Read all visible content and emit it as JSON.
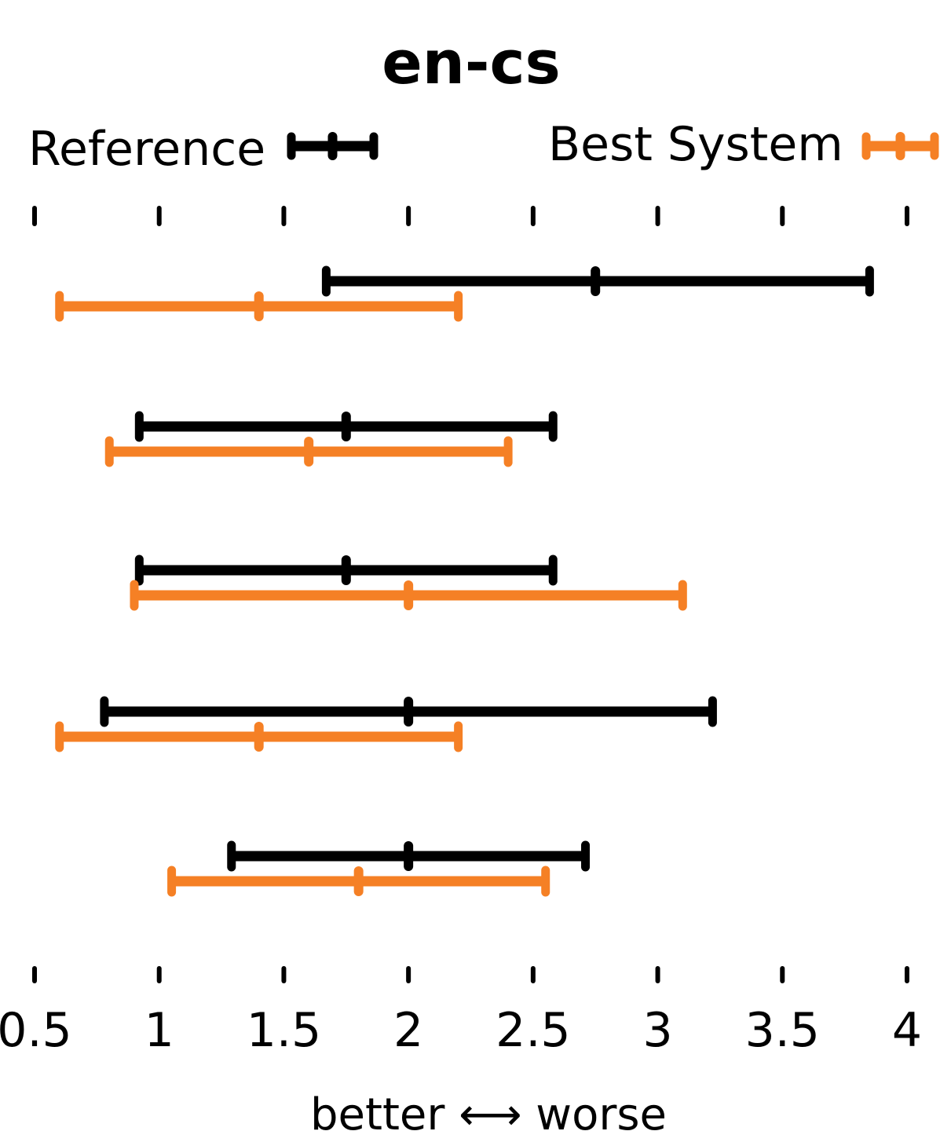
{
  "chart_data": {
    "type": "errorbar",
    "title": "en-cs",
    "xlabel": "better ⟷ worse",
    "ylabel": "",
    "xlim": [
      0.5,
      4
    ],
    "xticks": [
      0.5,
      1,
      1.5,
      2,
      2.5,
      3,
      3.5,
      4
    ],
    "xtick_labels": [
      "0.5",
      "1",
      "1.5",
      "2",
      "2.5",
      "3",
      "3.5",
      "4"
    ],
    "legend": {
      "placement": "top"
    },
    "series": [
      {
        "name": "Reference",
        "color": "#000000",
        "points": [
          {
            "low": 1.67,
            "mid": 2.75,
            "high": 3.85
          },
          {
            "low": 0.92,
            "mid": 1.75,
            "high": 2.58
          },
          {
            "low": 0.92,
            "mid": 1.75,
            "high": 2.58
          },
          {
            "low": 0.78,
            "mid": 2.0,
            "high": 3.22
          },
          {
            "low": 1.29,
            "mid": 2.0,
            "high": 2.71
          }
        ]
      },
      {
        "name": "Best System",
        "color": "#f58025",
        "points": [
          {
            "low": 0.6,
            "mid": 1.4,
            "high": 2.2
          },
          {
            "low": 0.8,
            "mid": 1.6,
            "high": 2.4
          },
          {
            "low": 0.9,
            "mid": 2.0,
            "high": 3.1
          },
          {
            "low": 0.6,
            "mid": 1.4,
            "high": 2.2
          },
          {
            "low": 1.05,
            "mid": 1.8,
            "high": 2.55
          }
        ]
      }
    ]
  }
}
